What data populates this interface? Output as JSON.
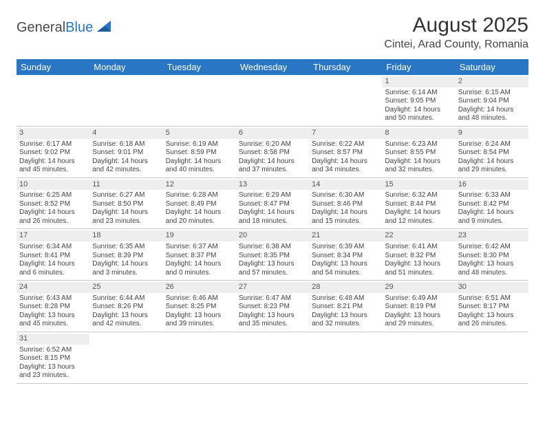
{
  "logo": {
    "text1": "General",
    "text2": "Blue"
  },
  "title": "August 2025",
  "location": "Cintei, Arad County, Romania",
  "colors": {
    "header_bg": "#2976c4",
    "header_text": "#ffffff",
    "daynum_bg": "#eeeeee",
    "border": "#c9c9c9"
  },
  "daysOfWeek": [
    "Sunday",
    "Monday",
    "Tuesday",
    "Wednesday",
    "Thursday",
    "Friday",
    "Saturday"
  ],
  "weeks": [
    [
      null,
      null,
      null,
      null,
      null,
      {
        "n": "1",
        "sr": "Sunrise: 6:14 AM",
        "ss": "Sunset: 9:05 PM",
        "dl": "Daylight: 14 hours and 50 minutes."
      },
      {
        "n": "2",
        "sr": "Sunrise: 6:15 AM",
        "ss": "Sunset: 9:04 PM",
        "dl": "Daylight: 14 hours and 48 minutes."
      }
    ],
    [
      {
        "n": "3",
        "sr": "Sunrise: 6:17 AM",
        "ss": "Sunset: 9:02 PM",
        "dl": "Daylight: 14 hours and 45 minutes."
      },
      {
        "n": "4",
        "sr": "Sunrise: 6:18 AM",
        "ss": "Sunset: 9:01 PM",
        "dl": "Daylight: 14 hours and 42 minutes."
      },
      {
        "n": "5",
        "sr": "Sunrise: 6:19 AM",
        "ss": "Sunset: 8:59 PM",
        "dl": "Daylight: 14 hours and 40 minutes."
      },
      {
        "n": "6",
        "sr": "Sunrise: 6:20 AM",
        "ss": "Sunset: 8:58 PM",
        "dl": "Daylight: 14 hours and 37 minutes."
      },
      {
        "n": "7",
        "sr": "Sunrise: 6:22 AM",
        "ss": "Sunset: 8:57 PM",
        "dl": "Daylight: 14 hours and 34 minutes."
      },
      {
        "n": "8",
        "sr": "Sunrise: 6:23 AM",
        "ss": "Sunset: 8:55 PM",
        "dl": "Daylight: 14 hours and 32 minutes."
      },
      {
        "n": "9",
        "sr": "Sunrise: 6:24 AM",
        "ss": "Sunset: 8:54 PM",
        "dl": "Daylight: 14 hours and 29 minutes."
      }
    ],
    [
      {
        "n": "10",
        "sr": "Sunrise: 6:25 AM",
        "ss": "Sunset: 8:52 PM",
        "dl": "Daylight: 14 hours and 26 minutes."
      },
      {
        "n": "11",
        "sr": "Sunrise: 6:27 AM",
        "ss": "Sunset: 8:50 PM",
        "dl": "Daylight: 14 hours and 23 minutes."
      },
      {
        "n": "12",
        "sr": "Sunrise: 6:28 AM",
        "ss": "Sunset: 8:49 PM",
        "dl": "Daylight: 14 hours and 20 minutes."
      },
      {
        "n": "13",
        "sr": "Sunrise: 6:29 AM",
        "ss": "Sunset: 8:47 PM",
        "dl": "Daylight: 14 hours and 18 minutes."
      },
      {
        "n": "14",
        "sr": "Sunrise: 6:30 AM",
        "ss": "Sunset: 8:46 PM",
        "dl": "Daylight: 14 hours and 15 minutes."
      },
      {
        "n": "15",
        "sr": "Sunrise: 6:32 AM",
        "ss": "Sunset: 8:44 PM",
        "dl": "Daylight: 14 hours and 12 minutes."
      },
      {
        "n": "16",
        "sr": "Sunrise: 6:33 AM",
        "ss": "Sunset: 8:42 PM",
        "dl": "Daylight: 14 hours and 9 minutes."
      }
    ],
    [
      {
        "n": "17",
        "sr": "Sunrise: 6:34 AM",
        "ss": "Sunset: 8:41 PM",
        "dl": "Daylight: 14 hours and 6 minutes."
      },
      {
        "n": "18",
        "sr": "Sunrise: 6:35 AM",
        "ss": "Sunset: 8:39 PM",
        "dl": "Daylight: 14 hours and 3 minutes."
      },
      {
        "n": "19",
        "sr": "Sunrise: 6:37 AM",
        "ss": "Sunset: 8:37 PM",
        "dl": "Daylight: 14 hours and 0 minutes."
      },
      {
        "n": "20",
        "sr": "Sunrise: 6:38 AM",
        "ss": "Sunset: 8:35 PM",
        "dl": "Daylight: 13 hours and 57 minutes."
      },
      {
        "n": "21",
        "sr": "Sunrise: 6:39 AM",
        "ss": "Sunset: 8:34 PM",
        "dl": "Daylight: 13 hours and 54 minutes."
      },
      {
        "n": "22",
        "sr": "Sunrise: 6:41 AM",
        "ss": "Sunset: 8:32 PM",
        "dl": "Daylight: 13 hours and 51 minutes."
      },
      {
        "n": "23",
        "sr": "Sunrise: 6:42 AM",
        "ss": "Sunset: 8:30 PM",
        "dl": "Daylight: 13 hours and 48 minutes."
      }
    ],
    [
      {
        "n": "24",
        "sr": "Sunrise: 6:43 AM",
        "ss": "Sunset: 8:28 PM",
        "dl": "Daylight: 13 hours and 45 minutes."
      },
      {
        "n": "25",
        "sr": "Sunrise: 6:44 AM",
        "ss": "Sunset: 8:26 PM",
        "dl": "Daylight: 13 hours and 42 minutes."
      },
      {
        "n": "26",
        "sr": "Sunrise: 6:46 AM",
        "ss": "Sunset: 8:25 PM",
        "dl": "Daylight: 13 hours and 39 minutes."
      },
      {
        "n": "27",
        "sr": "Sunrise: 6:47 AM",
        "ss": "Sunset: 8:23 PM",
        "dl": "Daylight: 13 hours and 35 minutes."
      },
      {
        "n": "28",
        "sr": "Sunrise: 6:48 AM",
        "ss": "Sunset: 8:21 PM",
        "dl": "Daylight: 13 hours and 32 minutes."
      },
      {
        "n": "29",
        "sr": "Sunrise: 6:49 AM",
        "ss": "Sunset: 8:19 PM",
        "dl": "Daylight: 13 hours and 29 minutes."
      },
      {
        "n": "30",
        "sr": "Sunrise: 6:51 AM",
        "ss": "Sunset: 8:17 PM",
        "dl": "Daylight: 13 hours and 26 minutes."
      }
    ],
    [
      {
        "n": "31",
        "sr": "Sunrise: 6:52 AM",
        "ss": "Sunset: 8:15 PM",
        "dl": "Daylight: 13 hours and 23 minutes."
      },
      null,
      null,
      null,
      null,
      null,
      null
    ]
  ]
}
